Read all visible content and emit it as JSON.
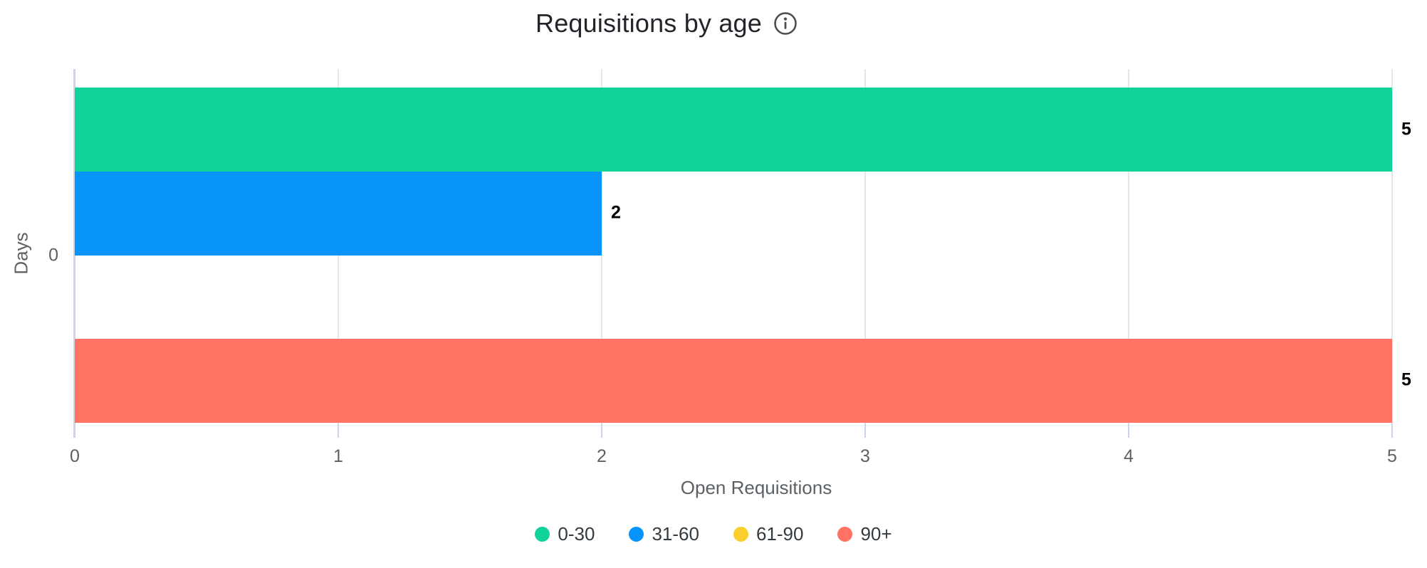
{
  "chart_data": {
    "type": "bar",
    "orientation": "horizontal",
    "title": "Requisitions by age",
    "info_icon": "info-circle",
    "categories": [
      "0"
    ],
    "series": [
      {
        "name": "0-30",
        "color": "#0fd39a",
        "values": [
          5
        ]
      },
      {
        "name": "31-60",
        "color": "#0894fb",
        "values": [
          2
        ]
      },
      {
        "name": "61-90",
        "color": "#facf2d",
        "values": [
          0
        ]
      },
      {
        "name": "90+",
        "color": "#ff7264",
        "values": [
          5
        ]
      }
    ],
    "xlabel": "Open Requisitions",
    "ylabel": "Days",
    "xlim": [
      0,
      5
    ],
    "x_ticks": [
      "0",
      "1",
      "2",
      "3",
      "4",
      "5"
    ],
    "grid": true,
    "legend_position": "bottom",
    "colors": {
      "axis_line": "#ccd6eb",
      "gridline": "#e6e6e6",
      "axis_text": "#5c6166",
      "title_text": "#22262b",
      "value_label": "#000000",
      "legend_text": "#333a40"
    }
  }
}
